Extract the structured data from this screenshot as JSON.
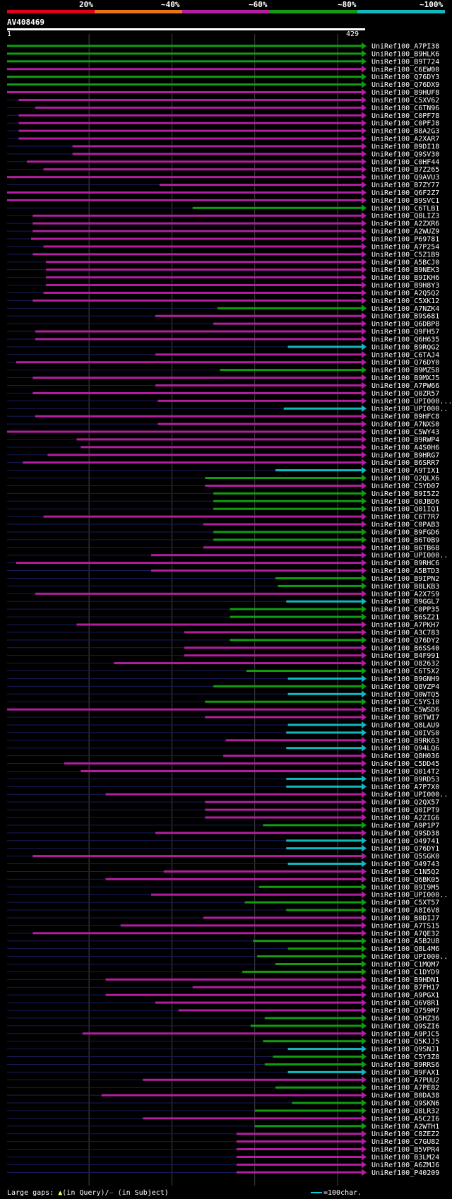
{
  "legend": {
    "labels": [
      "20%",
      "~40%",
      "~60%",
      "~80%",
      "~100%"
    ],
    "colors": [
      "#e4001c",
      "#e8741a",
      "#b31ea1",
      "#109d10",
      "#12b8c0"
    ]
  },
  "query": {
    "id": "AV408469",
    "start": "1",
    "end": "429"
  },
  "footer": {
    "text1": "Large gaps: ",
    "tri": "▲",
    "text2": "(in Query)/",
    "dash": "–",
    "text3": " (in Subject)",
    "scale": "=100char."
  },
  "chart_data": {
    "type": "alignment-overview",
    "query_length": 429,
    "x_range": [
      1,
      429
    ],
    "hits": [
      {
        "name": "UniRef100_A7PI38",
        "start": 1,
        "end": 429,
        "identity": "80-100"
      },
      {
        "name": "UniRef100_B9HLK6",
        "start": 1,
        "end": 429,
        "identity": "80-100"
      },
      {
        "name": "UniRef100_B9T724",
        "start": 1,
        "end": 429,
        "identity": "80-100"
      },
      {
        "name": "UniRef100_C6EW00",
        "start": 1,
        "end": 429,
        "identity": "60-80"
      },
      {
        "name": "UniRef100_Q76DY3",
        "start": 1,
        "end": 429,
        "identity": "80-100"
      },
      {
        "name": "UniRef100_Q76DX9",
        "start": 1,
        "end": 429,
        "identity": "80-100"
      },
      {
        "name": "UniRef100_B9HUF8",
        "start": 1,
        "end": 429,
        "identity": "60-80"
      },
      {
        "name": "UniRef100_C5XV62",
        "start": 15,
        "end": 429,
        "identity": "60-80"
      },
      {
        "name": "UniRef100_C6TN96",
        "start": 35,
        "end": 429,
        "identity": "60-80"
      },
      {
        "name": "UniRef100_C0PF78",
        "start": 15,
        "end": 429,
        "identity": "60-80"
      },
      {
        "name": "UniRef100_C0PFJ8",
        "start": 15,
        "end": 429,
        "identity": "60-80"
      },
      {
        "name": "UniRef100_B8A2G3",
        "start": 15,
        "end": 429,
        "identity": "60-80"
      },
      {
        "name": "UniRef100_A2XAR7",
        "start": 15,
        "end": 429,
        "identity": "60-80"
      },
      {
        "name": "UniRef100_B9DI18",
        "start": 80,
        "end": 429,
        "identity": "60-80"
      },
      {
        "name": "UniRef100_Q9SV30",
        "start": 80,
        "end": 429,
        "identity": "60-80"
      },
      {
        "name": "UniRef100_C0HF44",
        "start": 25,
        "end": 429,
        "identity": "60-80"
      },
      {
        "name": "UniRef100_B7Z265",
        "start": 45,
        "end": 429,
        "identity": "60-80"
      },
      {
        "name": "UniRef100_Q9AVU3",
        "start": 1,
        "end": 429,
        "identity": "60-80"
      },
      {
        "name": "UniRef100_B7ZY77",
        "start": 185,
        "end": 429,
        "identity": "60-80"
      },
      {
        "name": "UniRef100_Q6F2Z7",
        "start": 1,
        "end": 429,
        "identity": "60-80"
      },
      {
        "name": "UniRef100_B9SVC1",
        "start": 1,
        "end": 429,
        "identity": "60-80"
      },
      {
        "name": "UniRef100_C6TLB1",
        "start": 225,
        "end": 429,
        "identity": "80-100"
      },
      {
        "name": "UniRef100_Q8LIZ3",
        "start": 32,
        "end": 429,
        "identity": "60-80"
      },
      {
        "name": "UniRef100_A2ZXR6",
        "start": 32,
        "end": 429,
        "identity": "60-80"
      },
      {
        "name": "UniRef100_A2WUZ9",
        "start": 32,
        "end": 429,
        "identity": "60-80"
      },
      {
        "name": "UniRef100_P69781",
        "start": 30,
        "end": 429,
        "identity": "60-80"
      },
      {
        "name": "UniRef100_A7P254",
        "start": 45,
        "end": 429,
        "identity": "60-80"
      },
      {
        "name": "UniRef100_C5Z1B9",
        "start": 32,
        "end": 429,
        "identity": "60-80"
      },
      {
        "name": "UniRef100_A5BCJ0",
        "start": 48,
        "end": 429,
        "identity": "60-80"
      },
      {
        "name": "UniRef100_B9NEK3",
        "start": 48,
        "end": 429,
        "identity": "60-80"
      },
      {
        "name": "UniRef100_B9IKH6",
        "start": 48,
        "end": 429,
        "identity": "60-80"
      },
      {
        "name": "UniRef100_B9H8Y3",
        "start": 48,
        "end": 429,
        "identity": "60-80"
      },
      {
        "name": "UniRef100_A2Q5Q2",
        "start": 45,
        "end": 429,
        "identity": "60-80"
      },
      {
        "name": "UniRef100_C5XK12",
        "start": 32,
        "end": 429,
        "identity": "60-80"
      },
      {
        "name": "UniRef100_A7NZK4",
        "start": 255,
        "end": 429,
        "identity": "80-100"
      },
      {
        "name": "UniRef100_B9S681",
        "start": 180,
        "end": 429,
        "identity": "60-80"
      },
      {
        "name": "UniRef100_Q6DBP8",
        "start": 250,
        "end": 429,
        "identity": "60-80"
      },
      {
        "name": "UniRef100_Q9FH57",
        "start": 35,
        "end": 429,
        "identity": "60-80"
      },
      {
        "name": "UniRef100_Q6H635",
        "start": 35,
        "end": 429,
        "identity": "60-80"
      },
      {
        "name": "UniRef100_B9RQG2",
        "start": 340,
        "end": 429,
        "identity": "100"
      },
      {
        "name": "UniRef100_C6TAJ4",
        "start": 180,
        "end": 429,
        "identity": "60-80"
      },
      {
        "name": "UniRef100_Q76DY0",
        "start": 12,
        "end": 429,
        "identity": "60-80"
      },
      {
        "name": "UniRef100_B9MZ58",
        "start": 258,
        "end": 429,
        "identity": "80-100"
      },
      {
        "name": "UniRef100_B9MXJ5",
        "start": 32,
        "end": 429,
        "identity": "60-80"
      },
      {
        "name": "UniRef100_A7PW66",
        "start": 180,
        "end": 429,
        "identity": "60-80"
      },
      {
        "name": "UniRef100_Q0ZR57",
        "start": 32,
        "end": 429,
        "identity": "60-80"
      },
      {
        "name": "UniRef100_UPI000...",
        "start": 183,
        "end": 429,
        "identity": "60-80"
      },
      {
        "name": "UniRef100_UPI000..",
        "start": 335,
        "end": 429,
        "identity": "100"
      },
      {
        "name": "UniRef100_B9HFC8",
        "start": 35,
        "end": 429,
        "identity": "60-80"
      },
      {
        "name": "UniRef100_A7NXS0",
        "start": 183,
        "end": 429,
        "identity": "60-80"
      },
      {
        "name": "UniRef100_C5WY43",
        "start": 1,
        "end": 429,
        "identity": "60-80"
      },
      {
        "name": "UniRef100_B9RWP4",
        "start": 85,
        "end": 429,
        "identity": "60-80"
      },
      {
        "name": "UniRef100_A4S0H6",
        "start": 90,
        "end": 429,
        "identity": "60-80"
      },
      {
        "name": "UniRef100_B9HRG7",
        "start": 50,
        "end": 429,
        "identity": "60-80"
      },
      {
        "name": "UniRef100_B6SRR7",
        "start": 20,
        "end": 429,
        "identity": "60-80"
      },
      {
        "name": "UniRef100_A9TIX1",
        "start": 325,
        "end": 429,
        "identity": "100"
      },
      {
        "name": "UniRef100_Q2QLX6",
        "start": 240,
        "end": 429,
        "identity": "80-100"
      },
      {
        "name": "UniRef100_C5YD07",
        "start": 240,
        "end": 429,
        "identity": "60-80"
      },
      {
        "name": "UniRef100_B9I5Z2",
        "start": 250,
        "end": 429,
        "identity": "80-100"
      },
      {
        "name": "UniRef100_Q0JBD6",
        "start": 250,
        "end": 429,
        "identity": "80-100"
      },
      {
        "name": "UniRef100_Q01IQ1",
        "start": 250,
        "end": 429,
        "identity": "80-100"
      },
      {
        "name": "UniRef100_C6T7R7",
        "start": 45,
        "end": 429,
        "identity": "60-80"
      },
      {
        "name": "UniRef100_C0PAB3",
        "start": 238,
        "end": 429,
        "identity": "60-80"
      },
      {
        "name": "UniRef100_B9FGD6",
        "start": 250,
        "end": 429,
        "identity": "80-100"
      },
      {
        "name": "UniRef100_B6T0B9",
        "start": 250,
        "end": 429,
        "identity": "80-100"
      },
      {
        "name": "UniRef100_B6TB68",
        "start": 238,
        "end": 429,
        "identity": "60-80"
      },
      {
        "name": "UniRef100_UPI000..",
        "start": 175,
        "end": 429,
        "identity": "60-80"
      },
      {
        "name": "UniRef100_B9RHC6",
        "start": 12,
        "end": 429,
        "identity": "60-80"
      },
      {
        "name": "UniRef100_A5BTD3",
        "start": 175,
        "end": 429,
        "identity": "60-80"
      },
      {
        "name": "UniRef100_B9IPN2",
        "start": 325,
        "end": 429,
        "identity": "80-100"
      },
      {
        "name": "UniRef100_B8LKB3",
        "start": 328,
        "end": 429,
        "identity": "80-100"
      },
      {
        "name": "UniRef100_A2X7S9",
        "start": 35,
        "end": 429,
        "identity": "60-80"
      },
      {
        "name": "UniRef100_B9GGL7",
        "start": 338,
        "end": 429,
        "identity": "100"
      },
      {
        "name": "UniRef100_C0PP35",
        "start": 270,
        "end": 429,
        "identity": "80-100"
      },
      {
        "name": "UniRef100_B6SZ21",
        "start": 270,
        "end": 429,
        "identity": "80-100"
      },
      {
        "name": "UniRef100_A7PKH7",
        "start": 85,
        "end": 429,
        "identity": "60-80"
      },
      {
        "name": "UniRef100_A3C783",
        "start": 215,
        "end": 429,
        "identity": "60-80"
      },
      {
        "name": "UniRef100_Q76DY2",
        "start": 270,
        "end": 429,
        "identity": "80-100"
      },
      {
        "name": "UniRef100_B6SS40",
        "start": 215,
        "end": 429,
        "identity": "60-80"
      },
      {
        "name": "UniRef100_B4F991",
        "start": 215,
        "end": 429,
        "identity": "60-80"
      },
      {
        "name": "UniRef100_O82632",
        "start": 130,
        "end": 429,
        "identity": "60-80"
      },
      {
        "name": "UniRef100_C6T5X2",
        "start": 290,
        "end": 429,
        "identity": "80-100"
      },
      {
        "name": "UniRef100_B9GNH9",
        "start": 340,
        "end": 429,
        "identity": "100"
      },
      {
        "name": "UniRef100_Q8VZP4",
        "start": 250,
        "end": 429,
        "identity": "80-100"
      },
      {
        "name": "UniRef100_Q0WTQ5",
        "start": 340,
        "end": 429,
        "identity": "100"
      },
      {
        "name": "UniRef100_C5YS10",
        "start": 240,
        "end": 429,
        "identity": "80-100"
      },
      {
        "name": "UniRef100_C5WSD6",
        "start": 1,
        "end": 429,
        "identity": "60-80"
      },
      {
        "name": "UniRef100_B6TWI7",
        "start": 240,
        "end": 429,
        "identity": "60-80"
      },
      {
        "name": "UniRef100_Q8LAU9",
        "start": 340,
        "end": 429,
        "identity": "100"
      },
      {
        "name": "UniRef100_Q0IVS0",
        "start": 338,
        "end": 429,
        "identity": "100"
      },
      {
        "name": "UniRef100_B9RK63",
        "start": 265,
        "end": 429,
        "identity": "60-80"
      },
      {
        "name": "UniRef100_Q94LQ6",
        "start": 338,
        "end": 429,
        "identity": "100"
      },
      {
        "name": "UniRef100_Q8H036",
        "start": 262,
        "end": 429,
        "identity": "60-80"
      },
      {
        "name": "UniRef100_C5DD45",
        "start": 70,
        "end": 429,
        "identity": "60-80"
      },
      {
        "name": "UniRef100_Q014T2",
        "start": 90,
        "end": 429,
        "identity": "60-80"
      },
      {
        "name": "UniRef100_B9RD53",
        "start": 338,
        "end": 429,
        "identity": "100"
      },
      {
        "name": "UniRef100_A7P7X0",
        "start": 338,
        "end": 429,
        "identity": "100"
      },
      {
        "name": "UniRef100_UPI000..",
        "start": 120,
        "end": 429,
        "identity": "60-80"
      },
      {
        "name": "UniRef100_Q2QX57",
        "start": 240,
        "end": 429,
        "identity": "60-80"
      },
      {
        "name": "UniRef100_Q0IPT9",
        "start": 240,
        "end": 429,
        "identity": "60-80"
      },
      {
        "name": "UniRef100_A2ZIG6",
        "start": 240,
        "end": 429,
        "identity": "60-80"
      },
      {
        "name": "UniRef100_A9P1P7",
        "start": 310,
        "end": 429,
        "identity": "80-100"
      },
      {
        "name": "UniRef100_Q9SD38",
        "start": 180,
        "end": 429,
        "identity": "60-80"
      },
      {
        "name": "UniRef100_O49741",
        "start": 338,
        "end": 429,
        "identity": "100"
      },
      {
        "name": "UniRef100_Q76DY1",
        "start": 338,
        "end": 429,
        "identity": "100"
      },
      {
        "name": "UniRef100_Q5SGK0",
        "start": 32,
        "end": 429,
        "identity": "60-80"
      },
      {
        "name": "UniRef100_O49743",
        "start": 340,
        "end": 429,
        "identity": "100"
      },
      {
        "name": "UniRef100_C1N5Q2",
        "start": 190,
        "end": 429,
        "identity": "60-80"
      },
      {
        "name": "UniRef100_Q6BK05",
        "start": 120,
        "end": 429,
        "identity": "60-80"
      },
      {
        "name": "UniRef100_B9I9M5",
        "start": 305,
        "end": 429,
        "identity": "80-100"
      },
      {
        "name": "UniRef100_UPI000..",
        "start": 175,
        "end": 429,
        "identity": "60-80"
      },
      {
        "name": "UniRef100_C5XT57",
        "start": 288,
        "end": 429,
        "identity": "80-100"
      },
      {
        "name": "UniRef100_A8I6V8",
        "start": 338,
        "end": 429,
        "identity": "80-100"
      },
      {
        "name": "UniRef100_B0DIJ7",
        "start": 238,
        "end": 429,
        "identity": "60-80"
      },
      {
        "name": "UniRef100_A7TS15",
        "start": 138,
        "end": 429,
        "identity": "60-80"
      },
      {
        "name": "UniRef100_A7QE32",
        "start": 32,
        "end": 429,
        "identity": "60-80"
      },
      {
        "name": "UniRef100_A5B2U8",
        "start": 298,
        "end": 429,
        "identity": "80-100"
      },
      {
        "name": "UniRef100_Q8L4M6",
        "start": 340,
        "end": 429,
        "identity": "80-100"
      },
      {
        "name": "UniRef100_UPI000..",
        "start": 303,
        "end": 429,
        "identity": "80-100"
      },
      {
        "name": "UniRef100_C1MQM7",
        "start": 325,
        "end": 429,
        "identity": "80-100"
      },
      {
        "name": "UniRef100_C1DYD9",
        "start": 285,
        "end": 429,
        "identity": "80-100"
      },
      {
        "name": "UniRef100_B9HDN1",
        "start": 120,
        "end": 429,
        "identity": "60-80"
      },
      {
        "name": "UniRef100_B7FH17",
        "start": 225,
        "end": 429,
        "identity": "60-80"
      },
      {
        "name": "UniRef100_A9PGX1",
        "start": 120,
        "end": 429,
        "identity": "60-80"
      },
      {
        "name": "UniRef100_Q6V8R1",
        "start": 180,
        "end": 429,
        "identity": "60-80"
      },
      {
        "name": "UniRef100_Q759M7",
        "start": 208,
        "end": 429,
        "identity": "60-80"
      },
      {
        "name": "UniRef100_Q5HZ36",
        "start": 312,
        "end": 429,
        "identity": "80-100"
      },
      {
        "name": "UniRef100_Q9SZI6",
        "start": 295,
        "end": 429,
        "identity": "80-100"
      },
      {
        "name": "UniRef100_A9PJC5",
        "start": 92,
        "end": 429,
        "identity": "60-80"
      },
      {
        "name": "UniRef100_Q5KJJ5",
        "start": 310,
        "end": 429,
        "identity": "80-100"
      },
      {
        "name": "UniRef100_Q9SNJ1",
        "start": 340,
        "end": 429,
        "identity": "100"
      },
      {
        "name": "UniRef100_C5Y3Z8",
        "start": 322,
        "end": 429,
        "identity": "80-100"
      },
      {
        "name": "UniRef100_B9RRS6",
        "start": 312,
        "end": 429,
        "identity": "80-100"
      },
      {
        "name": "UniRef100_B9FAX1",
        "start": 340,
        "end": 429,
        "identity": "100"
      },
      {
        "name": "UniRef100_A7PUU2",
        "start": 165,
        "end": 429,
        "identity": "60-80"
      },
      {
        "name": "UniRef100_A7PE82",
        "start": 325,
        "end": 429,
        "identity": "80-100"
      },
      {
        "name": "UniRef100_B0DA38",
        "start": 115,
        "end": 429,
        "identity": "60-80"
      },
      {
        "name": "UniRef100_Q9SKN6",
        "start": 345,
        "end": 429,
        "identity": "80-100"
      },
      {
        "name": "UniRef100_Q8LR32",
        "start": 300,
        "end": 429,
        "identity": "80-100"
      },
      {
        "name": "UniRef100_A5C2I6",
        "start": 165,
        "end": 429,
        "identity": "60-80"
      },
      {
        "name": "UniRef100_A2WTH1",
        "start": 300,
        "end": 429,
        "identity": "80-100"
      },
      {
        "name": "UniRef100_C8ZEZ2",
        "start": 278,
        "end": 429,
        "identity": "60-80"
      },
      {
        "name": "UniRef100_C7GU82",
        "start": 278,
        "end": 429,
        "identity": "60-80"
      },
      {
        "name": "UniRef100_B5VPR4",
        "start": 278,
        "end": 429,
        "identity": "60-80"
      },
      {
        "name": "UniRef100_B3LM24",
        "start": 278,
        "end": 429,
        "identity": "60-80"
      },
      {
        "name": "UniRef100_A6ZMJ6",
        "start": 278,
        "end": 429,
        "identity": "60-80"
      },
      {
        "name": "UniRef100_P40209",
        "start": 278,
        "end": 429,
        "identity": "60-80"
      }
    ]
  }
}
